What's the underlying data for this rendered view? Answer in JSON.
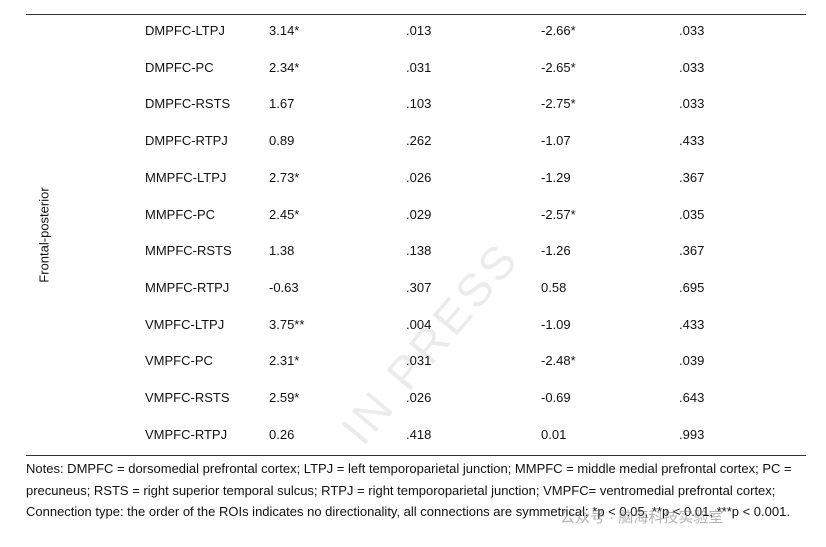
{
  "table": {
    "group_label": "Frontal-posterior",
    "rows": [
      [
        "DMPFC-LTPJ",
        "3.14*",
        ".013",
        "-2.66*",
        ".033"
      ],
      [
        "DMPFC-PC",
        "2.34*",
        ".031",
        "-2.65*",
        ".033"
      ],
      [
        "DMPFC-RSTS",
        "1.67",
        ".103",
        "-2.75*",
        ".033"
      ],
      [
        "DMPFC-RTPJ",
        "0.89",
        ".262",
        "-1.07",
        ".433"
      ],
      [
        "MMPFC-LTPJ",
        "2.73*",
        ".026",
        "-1.29",
        ".367"
      ],
      [
        "MMPFC-PC",
        "2.45*",
        ".029",
        "-2.57*",
        ".035"
      ],
      [
        "MMPFC-RSTS",
        "1.38",
        ".138",
        "-1.26",
        ".367"
      ],
      [
        "MMPFC-RTPJ",
        "-0.63",
        ".307",
        "0.58",
        ".695"
      ],
      [
        "VMPFC-LTPJ",
        "3.75**",
        ".004",
        "-1.09",
        ".433"
      ],
      [
        "VMPFC-PC",
        "2.31*",
        ".031",
        "-2.48*",
        ".039"
      ],
      [
        "VMPFC-RSTS",
        "2.59*",
        ".026",
        "-0.69",
        ".643"
      ],
      [
        "VMPFC-RTPJ",
        "0.26",
        ".418",
        "0.01",
        ".993"
      ]
    ]
  },
  "notes": "Notes: DMPFC = dorsomedial prefrontal cortex; LTPJ = left temporoparietal junction; MMPFC = middle medial prefrontal cortex; PC = precuneus; RSTS = right superior temporal sulcus; RTPJ = right temporoparietal junction; VMPFC= ventromedial prefrontal cortex; Connection type: the order of the ROIs indicates no directionality, all connections are symmetrical; *p < 0.05, **p < 0.01, ***p < 0.001.",
  "watermark": "IN PRESS",
  "wechat_watermark": "公众号 · 脑海科技实验室"
}
